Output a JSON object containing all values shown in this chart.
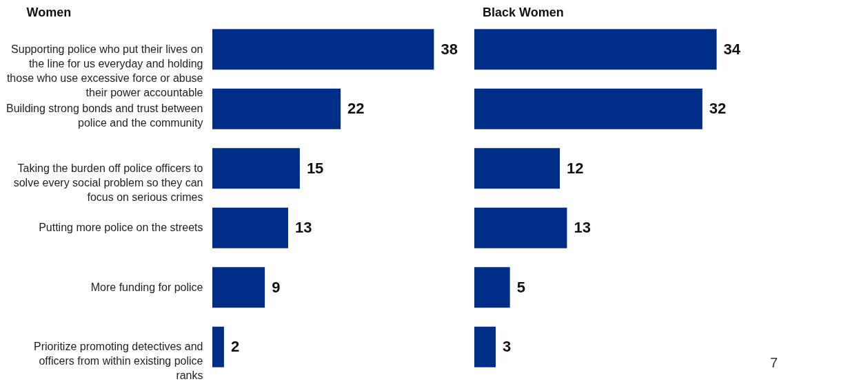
{
  "chart_data": [
    {
      "type": "bar",
      "orientation": "horizontal",
      "title": "Women",
      "categories": [
        "Supporting police who put their lives on the line for us everyday and holding those who use excessive force or abuse their power accountable",
        "Building strong bonds and trust between police and the community",
        "Taking the burden off police officers to solve every social problem so they can focus on serious crimes",
        "Putting more police on the streets",
        "More funding for police",
        "Prioritize promoting detectives and officers from within existing police ranks"
      ],
      "values": [
        38,
        22,
        15,
        13,
        9,
        2
      ],
      "color": "#002d85",
      "data_labels": true,
      "tick_labels": "y"
    },
    {
      "type": "bar",
      "orientation": "horizontal",
      "title": "Black Women",
      "categories": [
        null,
        null,
        null,
        null,
        null,
        null
      ],
      "values": [
        34,
        32,
        12,
        13,
        5,
        3
      ],
      "color": "#002d85",
      "data_labels": true,
      "tick_labels": false,
      "annotations": [
        "7"
      ]
    }
  ]
}
